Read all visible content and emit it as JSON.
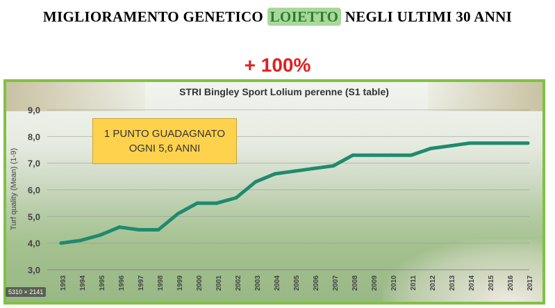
{
  "header": {
    "title_before": "MIGLIORAMENTO GENETICO ",
    "title_highlight": "LOIETTO",
    "title_after": " NEGLI ULTIMI 30 ANNI",
    "increase": "+ 100%"
  },
  "callout": {
    "line1": "1 PUNTO GUADAGNATO",
    "line2": "OGNI 5,6 ANNI"
  },
  "badge": "5310 × 2141",
  "colors": {
    "line": "#1f8a6e",
    "frame": "#7fc241",
    "increase": "#e02020",
    "callout": "#ffd24d"
  },
  "chart_data": {
    "type": "line",
    "title": "STRI Bingley Sport  Lolium perenne (S1 table)",
    "ylabel": "Turf quality (Mean) (1-9)",
    "xlabel": "",
    "ylim": [
      3.0,
      9.0
    ],
    "yticks": [
      "3,0",
      "4,0",
      "5,0",
      "6,0",
      "7,0",
      "8,0",
      "9,0"
    ],
    "grid": true,
    "x": [
      "1993",
      "1994",
      "1995",
      "1996",
      "1997",
      "1998",
      "1999",
      "2000",
      "2001",
      "2002",
      "2003",
      "2004",
      "2005",
      "2006",
      "2007",
      "2008",
      "2009",
      "2010",
      "2011",
      "2012",
      "2013",
      "2014",
      "2015",
      "2016",
      "2017"
    ],
    "series": [
      {
        "values": [
          4.0,
          4.1,
          4.3,
          4.6,
          4.5,
          4.5,
          5.1,
          5.5,
          5.5,
          5.7,
          6.3,
          6.6,
          6.7,
          6.8,
          6.9,
          7.3,
          7.3,
          7.3,
          7.3,
          7.55,
          7.65,
          7.75,
          7.75,
          7.75,
          7.75
        ]
      }
    ]
  }
}
